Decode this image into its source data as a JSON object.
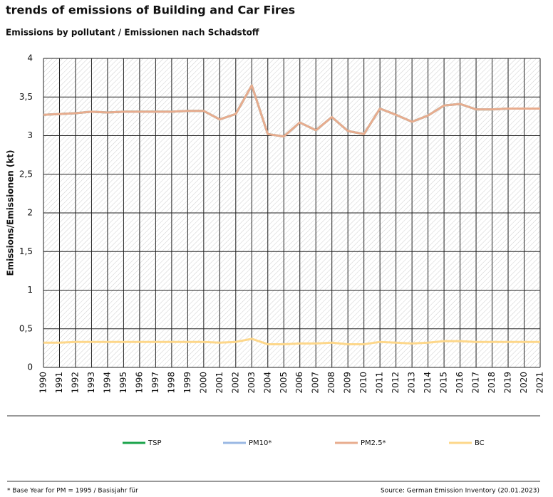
{
  "chart_data": {
    "type": "line",
    "title": "trends of emissions of Building and Car Fires",
    "subtitle": "Emissions by pollutant / Emissionen nach Schadstoff",
    "y_label": "Emissions/Emissionen (kt)",
    "x": [
      1990,
      1991,
      1992,
      1993,
      1994,
      1995,
      1996,
      1997,
      1998,
      1999,
      2000,
      2001,
      2002,
      2003,
      2004,
      2005,
      2006,
      2007,
      2008,
      2009,
      2010,
      2011,
      2012,
      2013,
      2014,
      2015,
      2016,
      2017,
      2018,
      2019,
      2020,
      2021
    ],
    "xlim": [
      1990,
      2021
    ],
    "ylim": [
      0,
      4
    ],
    "yticks": [
      0,
      {
        "value": 0.5,
        "label": "0,5"
      },
      1,
      {
        "value": 1.5,
        "label": "1,5"
      },
      2,
      {
        "value": 2.5,
        "label": "2,5"
      },
      3,
      {
        "value": 3.5,
        "label": "3,5"
      },
      4
    ],
    "grid": true,
    "series": [
      {
        "name": "TSP",
        "color": "#1aa34a",
        "values": [
          3.27,
          3.28,
          3.29,
          3.31,
          3.3,
          3.31,
          3.31,
          3.31,
          3.31,
          3.32,
          3.32,
          3.21,
          3.28,
          3.65,
          3.02,
          2.99,
          3.17,
          3.07,
          3.24,
          3.06,
          3.02,
          3.35,
          3.27,
          3.18,
          3.26,
          3.39,
          3.41,
          3.34,
          3.34,
          3.35,
          3.35,
          3.35
        ]
      },
      {
        "name": "PM10*",
        "color": "#9ab8e3",
        "values": [
          3.27,
          3.28,
          3.29,
          3.31,
          3.3,
          3.31,
          3.31,
          3.31,
          3.31,
          3.32,
          3.32,
          3.21,
          3.28,
          3.65,
          3.02,
          2.99,
          3.17,
          3.07,
          3.24,
          3.06,
          3.02,
          3.35,
          3.27,
          3.18,
          3.26,
          3.39,
          3.41,
          3.34,
          3.34,
          3.35,
          3.35,
          3.35
        ]
      },
      {
        "name": "PM2.5*",
        "color": "#e8ac8e",
        "values": [
          3.27,
          3.28,
          3.29,
          3.31,
          3.3,
          3.31,
          3.31,
          3.31,
          3.31,
          3.32,
          3.32,
          3.21,
          3.28,
          3.65,
          3.02,
          2.99,
          3.17,
          3.07,
          3.24,
          3.06,
          3.02,
          3.35,
          3.27,
          3.18,
          3.26,
          3.39,
          3.41,
          3.34,
          3.34,
          3.35,
          3.35,
          3.35
        ]
      },
      {
        "name": "BC",
        "color": "#fdd78a",
        "values": [
          0.32,
          0.32,
          0.33,
          0.33,
          0.33,
          0.33,
          0.33,
          0.33,
          0.33,
          0.33,
          0.33,
          0.32,
          0.33,
          0.37,
          0.3,
          0.3,
          0.31,
          0.31,
          0.32,
          0.3,
          0.3,
          0.33,
          0.32,
          0.31,
          0.32,
          0.34,
          0.34,
          0.33,
          0.33,
          0.33,
          0.33,
          0.33
        ]
      }
    ],
    "footnote": "* Base Year for PM = 1995 / Basisjahr für",
    "source": "Source: German Emission Inventory (20.01.2023)"
  }
}
